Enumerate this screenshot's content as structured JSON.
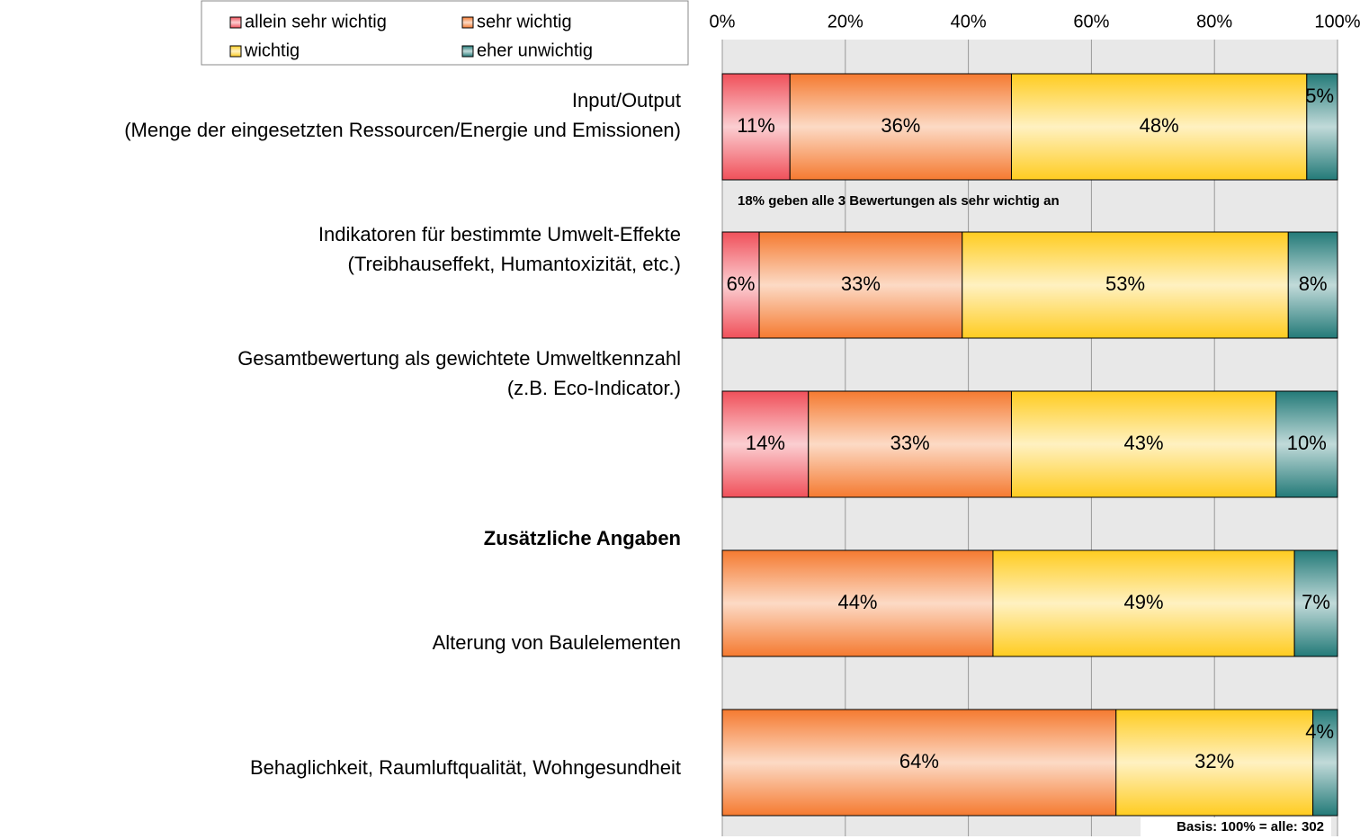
{
  "chart_data": {
    "type": "stacked_barh",
    "categories": [
      [
        "Input/Output",
        "(Menge der eingesetzten Ressourcen/Energie und Emissionen)"
      ],
      [
        "Indikatoren für bestimmte Umwelt-Effekte",
        "(Treibhauseffekt, Humantoxizität, etc.)"
      ],
      [
        "Gesamtbewertung als gewichtete Umweltkennzahl",
        "(z.B. Eco-Indicator.)"
      ],
      [
        "Alterung von Baulelementen"
      ],
      [
        "Behaglichkeit, Raumluftqualität, Wohngesundheit"
      ]
    ],
    "series": [
      {
        "name": "allein sehr wichtig",
        "color": "#f0505a",
        "values": [
          11,
          6,
          14,
          null,
          null
        ],
        "value_labels": [
          "11%",
          "6%",
          "14%",
          null,
          null
        ]
      },
      {
        "name": "sehr wichtig",
        "color": "#f57a30",
        "values": [
          36,
          33,
          33,
          44,
          64
        ],
        "value_labels": [
          "36%",
          "33%",
          "33%",
          "44%",
          "64%"
        ]
      },
      {
        "name": "wichtig",
        "color": "#ffcc20",
        "values": [
          48,
          53,
          43,
          49,
          32
        ],
        "value_labels": [
          "48%",
          "53%",
          "43%",
          "49%",
          "32%"
        ]
      },
      {
        "name": "eher unwichtig",
        "color": "#237a78",
        "values": [
          5,
          8,
          10,
          7,
          4
        ],
        "value_labels": [
          "5%",
          "8%",
          "10%",
          "7%",
          "4%"
        ]
      }
    ],
    "xlim": [
      0,
      100
    ],
    "xticks": [
      {
        "value": 0,
        "label": "0%"
      },
      {
        "value": 20,
        "label": "20%"
      },
      {
        "value": 40,
        "label": "40%"
      },
      {
        "value": 60,
        "label": "60%"
      },
      {
        "value": 80,
        "label": "80%"
      },
      {
        "value": 100,
        "label": "100%"
      }
    ],
    "grid": true,
    "legend": "top-left",
    "annotations": [
      "18% geben alle 3 Bewertungen als sehr wichtig an",
      "Zusätzliche Angaben",
      "Basis: 100% = alle: 302"
    ]
  }
}
